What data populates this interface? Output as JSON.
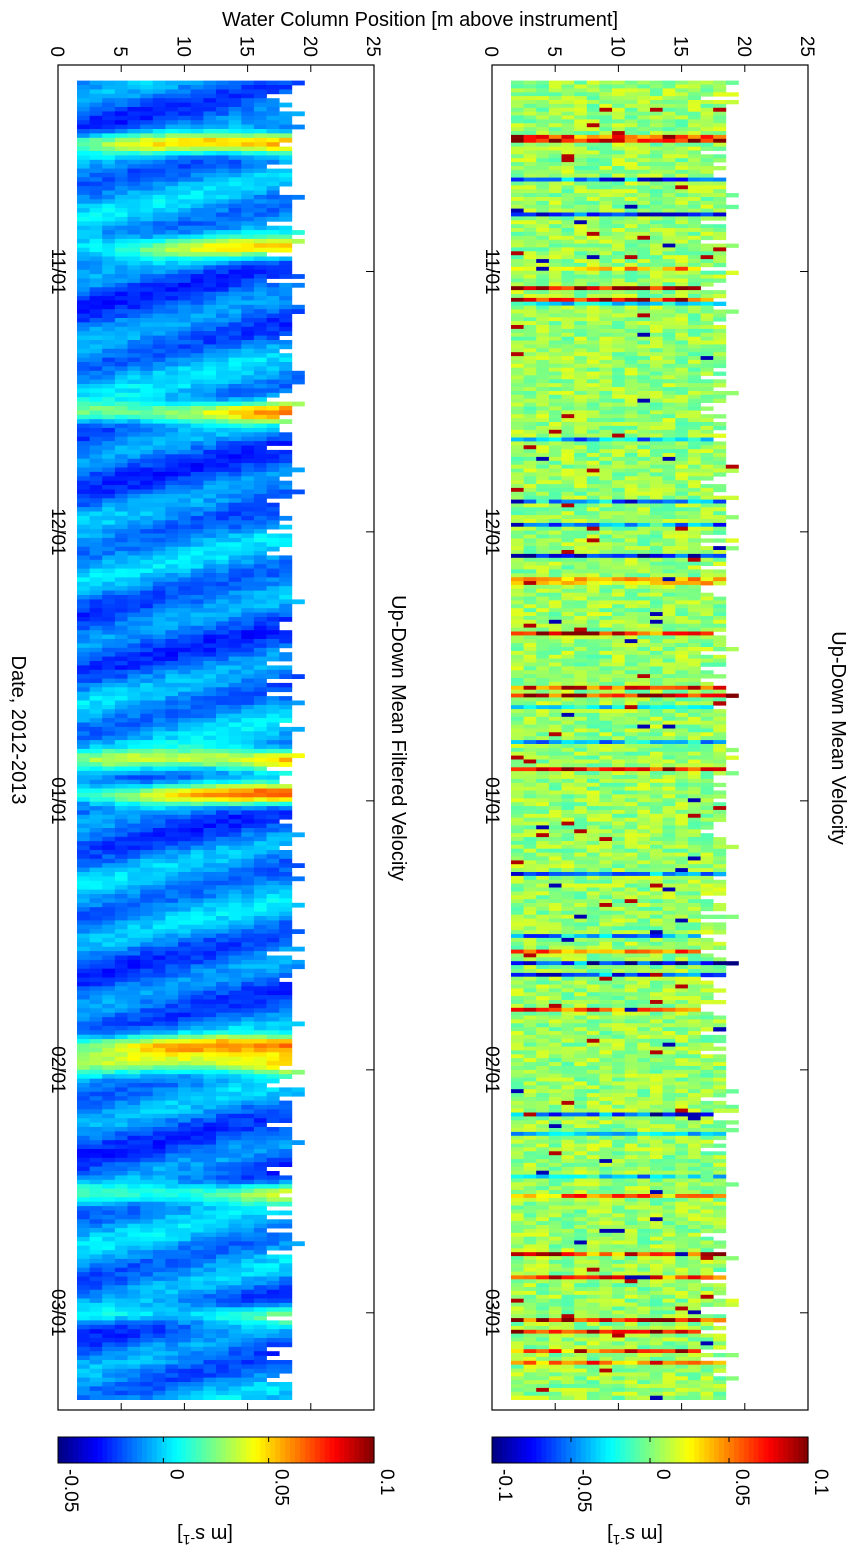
{
  "figure": {
    "ylabel": "Water Column Position [m above instrument]",
    "xlabel": "Date, 2012-2013"
  },
  "chart_data": [
    {
      "type": "heatmap",
      "title": "Up-Down Mean Velocity",
      "ylabel": "Water Column Position [m above instrument]",
      "xlabel": "",
      "ylim": [
        0,
        25
      ],
      "yticks": [
        0,
        5,
        10,
        15,
        20,
        25
      ],
      "x_range": [
        "2012-10-10",
        "2013-03-11"
      ],
      "xticks": [
        "11/01",
        "12/01",
        "01/01",
        "02/01",
        "03/01"
      ],
      "bin_range_m": [
        1.5,
        18.5
      ],
      "colorbar": {
        "label": "[m s-1]",
        "clim": [
          -0.1,
          0.1
        ],
        "ticks": [
          "-0.1",
          "-0.05",
          "0",
          "0.05",
          "0.1"
        ],
        "colormap": "jet"
      },
      "description_of_field": "noisy high-frequency vertical velocity, mostly near 0 (green), frequent spikes to ±0.1"
    },
    {
      "type": "heatmap",
      "title": "Up-Down Mean Filtered Velocity",
      "ylabel": "Water Column Position [m above instrument]",
      "xlabel": "Date, 2012-2013",
      "ylim": [
        0,
        25
      ],
      "yticks": [
        0,
        5,
        10,
        15,
        20,
        25
      ],
      "x_range": [
        "2012-10-10",
        "2013-03-11"
      ],
      "xticks": [
        "11/01",
        "12/01",
        "01/01",
        "02/01",
        "03/01"
      ],
      "bin_range_m": [
        1.5,
        18.5
      ],
      "colorbar": {
        "label": "[m s-1]",
        "clim": [
          -0.05,
          0.1
        ],
        "ticks": [
          "-0.05",
          "0",
          "0.05",
          "0.1"
        ],
        "colormap": "jet"
      },
      "events": [
        {
          "date": "2012-10-17",
          "peak": 0.09
        },
        {
          "date": "2012-10-29",
          "peak": 0.06
        },
        {
          "date": "2012-11-17",
          "peak": 0.07
        },
        {
          "date": "2012-12-27",
          "peak": 0.07
        },
        {
          "date": "2012-12-31",
          "peak": 0.09
        },
        {
          "date": "2013-01-29",
          "peak": 0.08
        },
        {
          "date": "2013-01-31",
          "peak": 0.06
        },
        {
          "date": "2013-02-15",
          "peak": 0.05
        },
        {
          "date": "2013-03-01",
          "peak": 0.04
        }
      ]
    }
  ],
  "colors": {
    "axis": "#000000",
    "background": "#ffffff"
  }
}
